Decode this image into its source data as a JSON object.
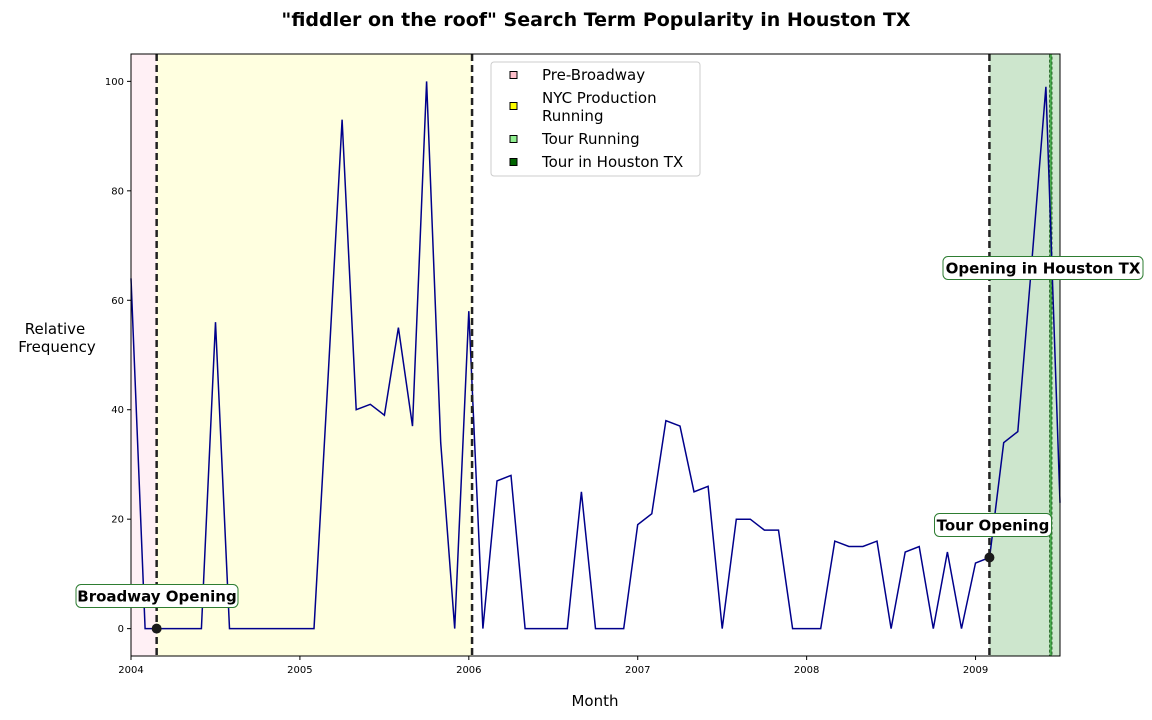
{
  "chart_data": {
    "type": "line",
    "title": "\"fiddler on the roof\" Search Term Popularity in Houston TX",
    "xlabel": "Month",
    "ylabel": "Relative Frequency",
    "xlim": [
      "2004-01",
      "2009-07"
    ],
    "ylim": [
      -5,
      105
    ],
    "x_ticks": [
      "2004",
      "2005",
      "2006",
      "2007",
      "2008",
      "2009"
    ],
    "y_ticks": [
      0,
      20,
      40,
      60,
      80,
      100
    ],
    "grid": false,
    "legend_position": "top-center",
    "series": [
      {
        "color": "#00008b",
        "x": [
          "2004-01",
          "2004-02",
          "2004-03",
          "2004-04",
          "2004-05",
          "2004-06",
          "2004-07",
          "2004-08",
          "2004-09",
          "2004-10",
          "2004-11",
          "2004-12",
          "2005-01",
          "2005-02",
          "2005-03",
          "2005-04",
          "2005-05",
          "2005-06",
          "2005-07",
          "2005-08",
          "2005-09",
          "2005-10",
          "2005-11",
          "2005-12",
          "2006-01",
          "2006-02",
          "2006-03",
          "2006-04",
          "2006-05",
          "2006-06",
          "2006-07",
          "2006-08",
          "2006-09",
          "2006-10",
          "2006-11",
          "2006-12",
          "2007-01",
          "2007-02",
          "2007-03",
          "2007-04",
          "2007-05",
          "2007-06",
          "2007-07",
          "2007-08",
          "2007-09",
          "2007-10",
          "2007-11",
          "2007-12",
          "2008-01",
          "2008-02",
          "2008-03",
          "2008-04",
          "2008-05",
          "2008-06",
          "2008-07",
          "2008-08",
          "2008-09",
          "2008-10",
          "2008-11",
          "2008-12",
          "2009-01",
          "2009-02",
          "2009-03",
          "2009-04",
          "2009-05",
          "2009-06",
          "2009-07"
        ],
        "values": [
          64,
          0,
          0,
          0,
          0,
          0,
          56,
          0,
          0,
          0,
          0,
          0,
          0,
          0,
          46,
          93,
          40,
          41,
          39,
          55,
          37,
          100,
          34,
          0,
          58,
          0,
          27,
          28,
          0,
          0,
          0,
          0,
          25,
          0,
          0,
          0,
          19,
          21,
          38,
          37,
          25,
          26,
          0,
          20,
          20,
          18,
          18,
          0,
          0,
          0,
          16,
          15,
          15,
          16,
          0,
          14,
          15,
          0,
          14,
          0,
          12,
          13,
          34,
          36,
          67,
          99,
          23
        ]
      }
    ],
    "regions": [
      {
        "label": "Pre-Broadway",
        "start": "2004-01",
        "end": "2004-02-26",
        "color": "#fff0f5",
        "legend_color": "#ffc0cb"
      },
      {
        "label": "NYC Production Running",
        "start": "2004-02-26",
        "end": "2006-01-08",
        "color": "#ffffe0",
        "legend_color": "#ffff00"
      },
      {
        "label": "Tour Running",
        "start": "2009-01-31",
        "end": "2009-07",
        "color": "#cde6cd",
        "legend_color": "#90ee90"
      },
      {
        "label": "Tour in Houston TX",
        "start": "2009-06-09",
        "end": "2009-06-14",
        "color": "#4caf50",
        "legend_color": "#006400"
      }
    ],
    "vlines": [
      "2004-02-26",
      "2006-01-08",
      "2009-01-31"
    ],
    "annotations": [
      {
        "text": "Broadway Opening",
        "date": "2004-02-26",
        "y": 0,
        "marker": true
      },
      {
        "text": "Tour Opening",
        "date": "2009-01-31",
        "y": 13,
        "marker": true
      },
      {
        "text": "Opening in Houston TX",
        "date": "2009-06-09",
        "y": 66,
        "marker": false
      }
    ]
  }
}
